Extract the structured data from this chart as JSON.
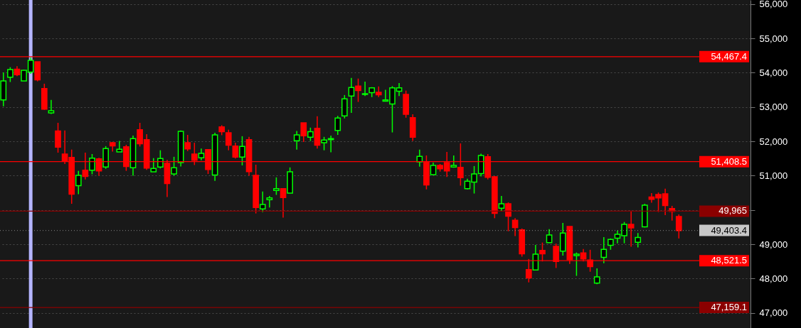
{
  "chart_data": {
    "type": "candlestick",
    "categories": [
      null,
      null,
      null,
      null,
      null,
      null,
      null,
      null,
      null,
      null,
      null,
      null,
      null,
      null,
      null,
      null,
      null,
      null,
      null,
      null,
      null,
      null,
      null,
      null,
      null,
      null,
      null,
      null,
      null,
      null,
      null,
      null,
      null,
      null,
      null,
      null,
      null,
      null,
      null,
      null,
      null,
      null,
      null,
      null,
      null,
      null,
      null,
      null,
      null,
      null,
      null,
      null,
      null,
      null,
      null,
      null,
      null,
      null,
      null,
      null,
      null,
      null,
      null,
      null,
      null,
      null,
      null,
      null,
      null,
      null,
      null,
      null,
      null,
      null,
      null,
      null,
      null,
      null,
      null,
      null,
      null,
      null,
      null,
      null,
      null,
      null,
      null,
      null,
      null,
      null,
      null,
      null,
      null,
      null,
      null,
      null,
      null,
      null,
      null,
      null,
      null,
      null,
      null,
      null,
      null,
      null,
      null,
      null,
      null,
      null
    ],
    "ohlc": [
      [
        53210,
        54010,
        53020,
        53760
      ],
      [
        53870,
        54160,
        53730,
        54090
      ],
      [
        54100,
        54190,
        53900,
        53940
      ],
      [
        53760,
        54090,
        53760,
        54070
      ],
      [
        54020,
        54450,
        53970,
        54360
      ],
      [
        54320,
        54320,
        53750,
        53790
      ],
      [
        53540,
        53680,
        52920,
        52940
      ],
      [
        52830,
        53210,
        52800,
        52890
      ],
      [
        52300,
        52540,
        51670,
        51830
      ],
      [
        51630,
        52320,
        51340,
        51430
      ],
      [
        51530,
        51760,
        50180,
        50460
      ],
      [
        50710,
        51140,
        50460,
        51010
      ],
      [
        51160,
        51670,
        50890,
        50980
      ],
      [
        51160,
        51630,
        51040,
        51510
      ],
      [
        51490,
        51520,
        51000,
        51140
      ],
      [
        51250,
        51860,
        51200,
        51790
      ],
      [
        51960,
        51980,
        51700,
        51870
      ],
      [
        51690,
        52010,
        51690,
        51770
      ],
      [
        51840,
        51900,
        51140,
        51270
      ],
      [
        51230,
        52170,
        51000,
        52080
      ],
      [
        52340,
        52540,
        51850,
        51930
      ],
      [
        52050,
        52210,
        51170,
        51220
      ],
      [
        51110,
        51510,
        51110,
        51210
      ],
      [
        51250,
        51740,
        51210,
        51500
      ],
      [
        51360,
        51460,
        50380,
        50770
      ],
      [
        51050,
        51550,
        51000,
        51230
      ],
      [
        51380,
        52320,
        51270,
        52290
      ],
      [
        51960,
        52190,
        51720,
        51780
      ],
      [
        51630,
        51960,
        51310,
        51450
      ],
      [
        51520,
        51790,
        51450,
        51650
      ],
      [
        51760,
        51760,
        51050,
        51180
      ],
      [
        51020,
        52250,
        50850,
        52190
      ],
      [
        52420,
        52470,
        52180,
        52280
      ],
      [
        52250,
        52340,
        51740,
        51890
      ],
      [
        51860,
        51960,
        51500,
        51540
      ],
      [
        51540,
        52150,
        51300,
        51850
      ],
      [
        52050,
        52130,
        51000,
        51120
      ],
      [
        51010,
        51320,
        49900,
        50070
      ],
      [
        50030,
        50540,
        49940,
        50160
      ],
      [
        50300,
        50410,
        50070,
        50350
      ],
      [
        50570,
        50950,
        50440,
        50620
      ],
      [
        50620,
        50620,
        49780,
        50360
      ],
      [
        50490,
        51240,
        50490,
        51110
      ],
      [
        52020,
        52300,
        51760,
        52190
      ],
      [
        52540,
        52540,
        51980,
        52160
      ],
      [
        52120,
        52400,
        52010,
        52280
      ],
      [
        52380,
        52730,
        51790,
        51890
      ],
      [
        51960,
        52130,
        51740,
        52040
      ],
      [
        52050,
        52170,
        51680,
        52080
      ],
      [
        52320,
        52740,
        52190,
        52680
      ],
      [
        52740,
        53350,
        52670,
        53240
      ],
      [
        53320,
        53850,
        52830,
        53570
      ],
      [
        53610,
        53830,
        53150,
        53480
      ],
      [
        53370,
        53740,
        53320,
        53390
      ],
      [
        53420,
        53580,
        53290,
        53560
      ],
      [
        53430,
        53600,
        53290,
        53360
      ],
      [
        53170,
        53500,
        53170,
        53210
      ],
      [
        53090,
        53610,
        52260,
        53560
      ],
      [
        53460,
        53700,
        53320,
        53560
      ],
      [
        53370,
        53480,
        52690,
        52790
      ],
      [
        52690,
        52790,
        52010,
        52120
      ],
      [
        51400,
        51760,
        51260,
        51560
      ],
      [
        51390,
        51590,
        50600,
        50730
      ],
      [
        51030,
        51380,
        51030,
        51300
      ],
      [
        51300,
        51340,
        51120,
        51200
      ],
      [
        51380,
        51690,
        50960,
        51140
      ],
      [
        51250,
        51590,
        51230,
        51300
      ],
      [
        51240,
        51940,
        50710,
        50940
      ],
      [
        50620,
        50910,
        50600,
        50840
      ],
      [
        50810,
        51280,
        50480,
        51050
      ],
      [
        51060,
        51640,
        50980,
        51590
      ],
      [
        51550,
        51630,
        50890,
        50950
      ],
      [
        50970,
        50990,
        49760,
        49900
      ],
      [
        50050,
        50410,
        49960,
        50180
      ],
      [
        50180,
        50220,
        49380,
        49820
      ],
      [
        49700,
        49760,
        49240,
        49490
      ],
      [
        49420,
        49460,
        48640,
        48720
      ],
      [
        48260,
        48570,
        47890,
        48020
      ],
      [
        48250,
        48980,
        48250,
        48710
      ],
      [
        48820,
        49050,
        48500,
        48720
      ],
      [
        49050,
        49440,
        49050,
        49270
      ],
      [
        48940,
        49020,
        48310,
        48500
      ],
      [
        48800,
        49620,
        48670,
        49330
      ],
      [
        49520,
        49520,
        48430,
        48550
      ],
      [
        48670,
        48760,
        48080,
        48710
      ],
      [
        48750,
        48860,
        48500,
        48570
      ],
      [
        48540,
        48840,
        48200,
        48350
      ],
      [
        47870,
        48300,
        47840,
        48050
      ],
      [
        48620,
        49210,
        48450,
        48850
      ],
      [
        48970,
        49170,
        48840,
        49140
      ],
      [
        49180,
        49400,
        49030,
        49290
      ],
      [
        49250,
        49650,
        49030,
        49580
      ],
      [
        49580,
        49980,
        48930,
        49480
      ],
      [
        49060,
        49330,
        48910,
        49200
      ],
      [
        49510,
        50180,
        49490,
        50140
      ],
      [
        50380,
        50490,
        50210,
        50310
      ],
      [
        50450,
        50510,
        49940,
        50350
      ],
      [
        50470,
        50620,
        49850,
        50130
      ],
      [
        50040,
        50120,
        49690,
        49960
      ],
      [
        49810,
        49870,
        49170,
        49400
      ],
      null,
      null,
      null,
      null,
      null,
      null,
      null,
      null,
      null,
      null
    ],
    "ylim": [
      46560,
      56120
    ],
    "yticks": [
      {
        "value": 47000,
        "label": "47,000"
      },
      {
        "value": 48000,
        "label": "48,000"
      },
      {
        "value": 49000,
        "label": "49,000"
      },
      {
        "value": 50000,
        "label": null
      },
      {
        "value": 51000,
        "label": "51,000"
      },
      {
        "value": 52000,
        "label": "52,000"
      },
      {
        "value": 53000,
        "label": "53,000"
      },
      {
        "value": 54000,
        "label": "54,000"
      },
      {
        "value": 55000,
        "label": "55,000"
      },
      {
        "value": 56000,
        "label": "56,000"
      }
    ],
    "tick_labels": "y",
    "grid": "y",
    "ref_lines": [
      {
        "axis": "y",
        "value": 54467.4,
        "label": "54,467.4",
        "color": "#ff0000"
      },
      {
        "axis": "y",
        "value": 51408.5,
        "label": "51,408.5",
        "color": "#ff0000"
      },
      {
        "axis": "y",
        "value": 49965,
        "label": "49,965",
        "color": "#8b0000"
      },
      {
        "axis": "y",
        "value": 49403.4,
        "label": "49,403.4",
        "color": "#c8c8c8",
        "line_style": "dotted"
      },
      {
        "axis": "y",
        "value": 48521.5,
        "label": "48,521.5",
        "color": "#ff0000"
      },
      {
        "axis": "y",
        "value": 47159.1,
        "label": "47,159.1",
        "color": "#8b0000"
      }
    ]
  }
}
